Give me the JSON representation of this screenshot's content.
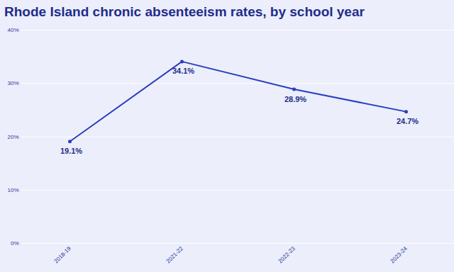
{
  "chart_data": {
    "type": "line",
    "title": "Rhode Island chronic absenteeism rates, by school year",
    "categories": [
      "2018-19",
      "2021-22",
      "2022-23",
      "2023-24"
    ],
    "values": [
      19.1,
      34.1,
      28.9,
      24.7
    ],
    "value_labels": [
      "19.1%",
      "34.1%",
      "28.9%",
      "24.7%"
    ],
    "color": "#2b3ebd",
    "ylim": [
      0,
      40
    ],
    "yticks": [
      {
        "value": 0,
        "label": "0%"
      },
      {
        "value": 10,
        "label": "10%"
      },
      {
        "value": 20,
        "label": "20%"
      },
      {
        "value": 30,
        "label": "30%"
      },
      {
        "value": 40,
        "label": "40%"
      }
    ],
    "grid": true,
    "data_labels": true,
    "marker": "circle"
  }
}
